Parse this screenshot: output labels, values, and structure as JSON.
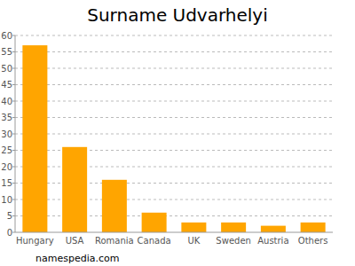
{
  "chart_data": {
    "type": "bar",
    "title": "Surname Udvarhelyi",
    "source": "namespedia.com",
    "categories": [
      "Hungary",
      "USA",
      "Romania",
      "Canada",
      "UK",
      "Sweden",
      "Austria",
      "Others"
    ],
    "values": [
      57,
      26,
      16,
      6,
      3,
      3,
      2,
      3
    ],
    "color": "#ffa500",
    "ylim": [
      0,
      60
    ],
    "yticks": [
      0,
      5,
      10,
      15,
      20,
      25,
      30,
      35,
      40,
      45,
      50,
      55,
      60
    ],
    "grid": true
  }
}
